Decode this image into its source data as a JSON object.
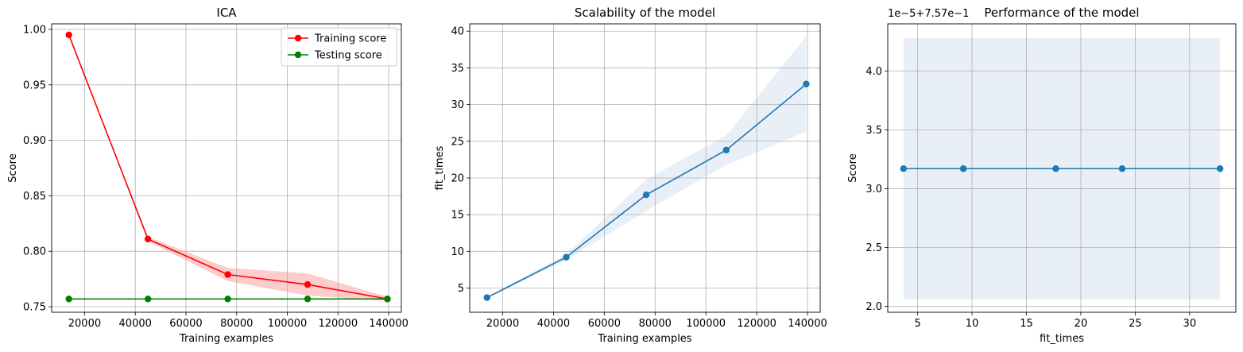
{
  "chart_data": [
    {
      "type": "line",
      "title": "ICA",
      "xlabel": "Training examples",
      "ylabel": "Score",
      "xlim": [
        7000,
        145000
      ],
      "ylim": [
        0.745,
        1.005
      ],
      "xticks": [
        20000,
        40000,
        60000,
        80000,
        100000,
        120000,
        140000
      ],
      "yticks": [
        0.75,
        0.8,
        0.85,
        0.9,
        0.95,
        1.0
      ],
      "ytick_labels": [
        "0.75",
        "0.80",
        "0.85",
        "0.90",
        "0.95",
        "1.00"
      ],
      "grid": true,
      "legend_position": "top-right",
      "x": [
        13800,
        45000,
        76500,
        108000,
        139500
      ],
      "series": [
        {
          "name": "Training score",
          "color": "#ff0000",
          "values": [
            0.995,
            0.811,
            0.779,
            0.77,
            0.757
          ],
          "band_lower": [
            0.995,
            0.809,
            0.773,
            0.76,
            0.755
          ],
          "band_upper": [
            0.995,
            0.813,
            0.785,
            0.78,
            0.759
          ],
          "band_color": "#ffcccc"
        },
        {
          "name": "Testing score",
          "color": "#008000",
          "values": [
            0.757,
            0.757,
            0.757,
            0.757,
            0.757
          ]
        }
      ]
    },
    {
      "type": "line",
      "title": "Scalability of the model",
      "xlabel": "Training examples",
      "ylabel": "fit_times",
      "xlim": [
        7000,
        145000
      ],
      "ylim": [
        1.7,
        41.0
      ],
      "xticks": [
        20000,
        40000,
        60000,
        80000,
        100000,
        120000,
        140000
      ],
      "yticks": [
        5,
        10,
        15,
        20,
        25,
        30,
        35,
        40
      ],
      "ytick_labels": [
        "5",
        "10",
        "15",
        "20",
        "25",
        "30",
        "35",
        "40"
      ],
      "grid": true,
      "x": [
        13800,
        45000,
        76500,
        108000,
        139500
      ],
      "series": [
        {
          "name": "",
          "color": "#1f77b4",
          "values": [
            3.7,
            9.2,
            17.7,
            23.8,
            32.8
          ],
          "band_lower": [
            3.6,
            8.8,
            15.5,
            21.8,
            26.3
          ],
          "band_upper": [
            3.8,
            9.6,
            19.8,
            25.8,
            39.3
          ],
          "band_color": "#e8eff7"
        }
      ]
    },
    {
      "type": "line",
      "title": "Performance of the model",
      "xlabel": "fit_times",
      "ylabel": "Score",
      "offset_text": "1e−5+7.57e−1",
      "xlim": [
        2.25,
        34.25
      ],
      "ylim": [
        1.95,
        4.4
      ],
      "xticks": [
        5,
        10,
        15,
        20,
        25,
        30
      ],
      "yticks": [
        2.0,
        2.5,
        3.0,
        3.5,
        4.0
      ],
      "ytick_labels": [
        "2.0",
        "2.5",
        "3.0",
        "3.5",
        "4.0"
      ],
      "grid": true,
      "x": [
        3.7,
        9.2,
        17.7,
        23.8,
        32.8
      ],
      "series": [
        {
          "name": "",
          "color": "#1f77b4",
          "values": [
            3.17,
            3.17,
            3.17,
            3.17,
            3.17
          ],
          "band_lower": [
            2.06,
            2.06,
            2.06,
            2.06,
            2.06
          ],
          "band_upper": [
            4.28,
            4.28,
            4.28,
            4.28,
            4.28
          ],
          "band_color": "#e8eff7"
        }
      ]
    }
  ]
}
